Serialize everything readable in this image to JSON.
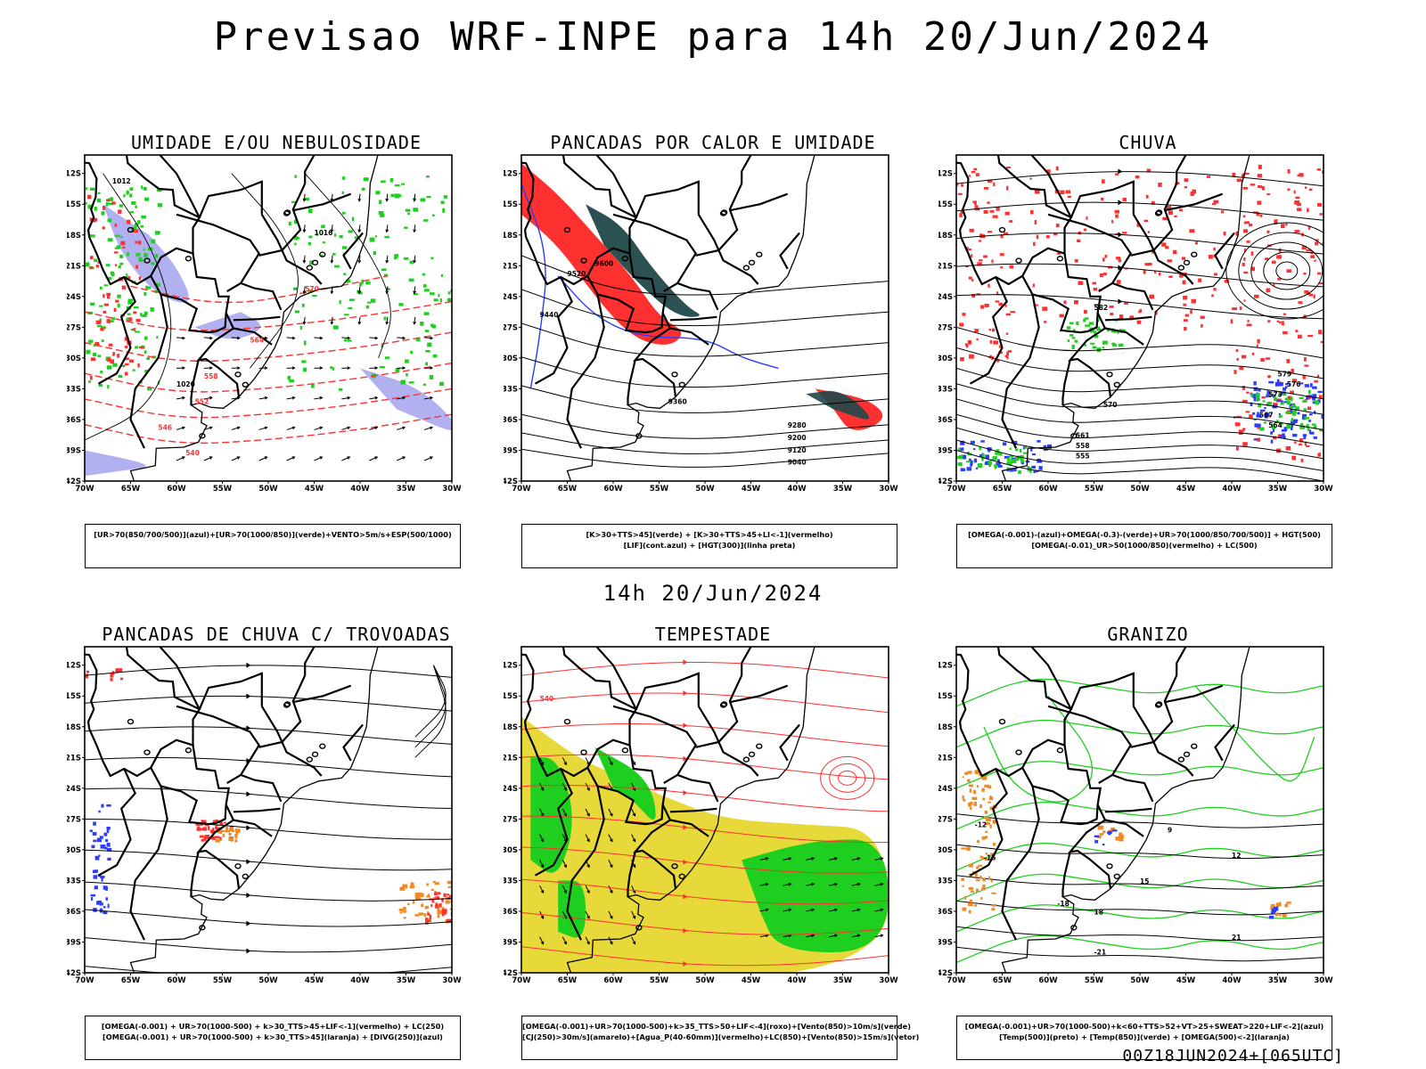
{
  "header": {
    "title": "Previsao WRF-INPE  para 14h 20/Jun/2024"
  },
  "middle": {
    "subtitle": "14h 20/Jun/2024"
  },
  "footer": {
    "run_stamp": "00Z18JUN2024+[065UTC]"
  },
  "axes": {
    "lat_labels": [
      "12S",
      "15S",
      "18S",
      "21S",
      "24S",
      "27S",
      "30S",
      "33S",
      "36S",
      "39S",
      "42S"
    ],
    "lon_labels": [
      "70W",
      "65W",
      "60W",
      "55W",
      "50W",
      "45W",
      "40W",
      "35W",
      "30W"
    ]
  },
  "colors": {
    "blue": "#2a3cff",
    "green": "#1fcf1f",
    "red": "#ff3030",
    "orange": "#f08a24",
    "yellow": "#e8d93a",
    "lavender": "#a8a8f0",
    "darkteal": "#20484a",
    "gray": "#a0a0a0"
  },
  "panels": [
    {
      "id": "umidade",
      "title": "UMIDADE E/OU NEBULOSIDADE",
      "legend": [
        "[UR>70(850/700/500)](azul)+[UR>70(1000/850)](verde)+VENTO>5m/s+ESP(500/1000)"
      ],
      "contours": [
        {
          "label": "1012",
          "color": "black"
        },
        {
          "label": "1016",
          "color": "black"
        },
        {
          "label": "1020",
          "color": "black"
        },
        {
          "label": "570",
          "color": "red"
        },
        {
          "label": "564",
          "color": "red"
        },
        {
          "label": "558",
          "color": "red"
        },
        {
          "label": "552",
          "color": "red"
        },
        {
          "label": "546",
          "color": "red"
        },
        {
          "label": "540",
          "color": "red"
        }
      ]
    },
    {
      "id": "pancadas-calor",
      "title": "PANCADAS POR CALOR E UMIDADE",
      "legend": [
        "[K>30+TTS>45](verde) + [K>30+TTS>45+LI<-1](vermelho)",
        "[LIF](cont.azul) + [HGT(300)](linha preta)"
      ],
      "contours": [
        {
          "label": "9600",
          "color": "black"
        },
        {
          "label": "9520",
          "color": "black"
        },
        {
          "label": "9440",
          "color": "black"
        },
        {
          "label": "9360",
          "color": "black"
        },
        {
          "label": "9280",
          "color": "black"
        },
        {
          "label": "9200",
          "color": "black"
        },
        {
          "label": "9120",
          "color": "black"
        },
        {
          "label": "9040",
          "color": "black"
        }
      ]
    },
    {
      "id": "chuva",
      "title": "CHUVA",
      "legend": [
        "[OMEGA(-0.001)-(azul)+OMEGA(-0.3)-(verde)+UR>70(1000/850/700/500)] + HGT(500)",
        "[OMEGA(-0.01)_UR>50(1000/850)(vermelho) + LC(500)"
      ],
      "contours": [
        {
          "label": "582",
          "color": "black"
        },
        {
          "label": "579",
          "color": "black"
        },
        {
          "label": "576",
          "color": "black"
        },
        {
          "label": "573",
          "color": "black"
        },
        {
          "label": "570",
          "color": "black"
        },
        {
          "label": "567",
          "color": "black"
        },
        {
          "label": "564",
          "color": "black"
        },
        {
          "label": "561",
          "color": "black"
        },
        {
          "label": "558",
          "color": "black"
        },
        {
          "label": "555",
          "color": "black"
        }
      ]
    },
    {
      "id": "trovoadas",
      "title": "PANCADAS DE CHUVA C/ TROVOADAS",
      "legend": [
        "[OMEGA(-0.001) + UR>70(1000-500) + k>30_TTS>45+LIF<-1](vermelho) + LC(250)",
        "[OMEGA(-0.001) + UR>70(1000-500) + k>30_TTS>45](laranja) + [DIVG(250)](azul)"
      ],
      "contours": []
    },
    {
      "id": "tempestade",
      "title": "TEMPESTADE",
      "legend": [
        "[OMEGA(-0.001)+UR>70(1000-500)+k>35_TTS>50+LIF<-4](roxo)+[Vento(850)>10m/s](verde)",
        "[CJ(250)>30m/s](amarelo)+[Agua_P(40-60mm)](vermelho)+LC(850)+[Vento(850)>15m/s](vetor)"
      ],
      "contours": [
        {
          "label": "540",
          "color": "red"
        }
      ]
    },
    {
      "id": "granizo",
      "title": "GRANIZO",
      "legend": [
        "[OMEGA(-0.001)+UR>70(1000-500)+k<60+TTS>52+VT>25+SWEAT>220+LIF<-2](azul)",
        "[Temp(500)](preto) + [Temp(850)](verde) + [OMEGA(500)<-2](laranja)"
      ],
      "contours": [
        {
          "label": "-12",
          "color": "black"
        },
        {
          "label": "-15",
          "color": "black"
        },
        {
          "label": "-18",
          "color": "black"
        },
        {
          "label": "-21",
          "color": "black"
        },
        {
          "label": "12",
          "color": "black"
        },
        {
          "label": "15",
          "color": "black"
        },
        {
          "label": "18",
          "color": "black"
        },
        {
          "label": "21",
          "color": "black"
        },
        {
          "label": "9",
          "color": "black"
        }
      ]
    }
  ]
}
